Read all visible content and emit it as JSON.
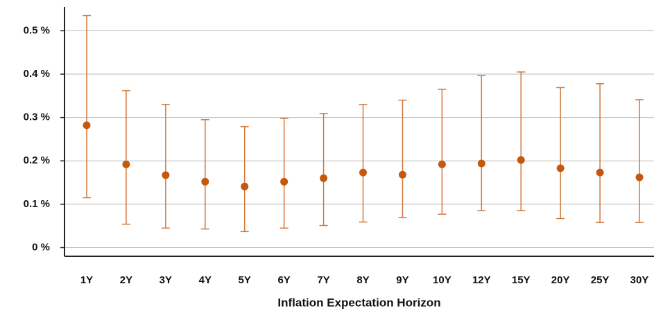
{
  "chart_data": {
    "type": "errorbar",
    "x_label": "Inflation Expectation Horizon",
    "categories": [
      "1Y",
      "2Y",
      "3Y",
      "4Y",
      "5Y",
      "6Y",
      "7Y",
      "8Y",
      "9Y",
      "10Y",
      "12Y",
      "15Y",
      "20Y",
      "25Y",
      "30Y"
    ],
    "values": [
      0.282,
      0.192,
      0.167,
      0.152,
      0.141,
      0.152,
      0.16,
      0.173,
      0.168,
      0.192,
      0.194,
      0.202,
      0.183,
      0.173,
      0.162
    ],
    "low": [
      0.115,
      0.054,
      0.045,
      0.043,
      0.037,
      0.045,
      0.051,
      0.059,
      0.069,
      0.077,
      0.085,
      0.085,
      0.067,
      0.058,
      0.058
    ],
    "high": [
      0.535,
      0.362,
      0.33,
      0.295,
      0.279,
      0.298,
      0.309,
      0.33,
      0.34,
      0.365,
      0.397,
      0.405,
      0.369,
      0.378,
      0.341
    ],
    "color": "#c4580e",
    "whisker_color": "#d0773a",
    "ylim": [
      -0.02,
      0.555
    ],
    "yticks": [
      {
        "value": 0,
        "label": "0 %"
      },
      {
        "value": 0.1,
        "label": "0.1 %"
      },
      {
        "value": 0.2,
        "label": "0.2 %"
      },
      {
        "value": 0.3,
        "label": "0.3 %"
      },
      {
        "value": 0.4,
        "label": "0.4 %"
      },
      {
        "value": 0.5,
        "label": "0.5 %"
      }
    ],
    "grid": true
  }
}
